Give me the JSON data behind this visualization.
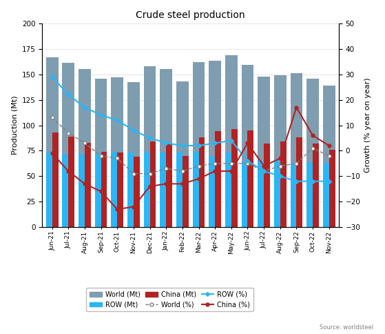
{
  "title": "Crude steel production",
  "ylabel_left": "Production (Mt)",
  "ylabel_right": "Growth (% year on year)",
  "source": "Source: worldsteel",
  "categories": [
    "Jun-21",
    "Jul-21",
    "Aug-21",
    "Sep-21",
    "Oct-21",
    "Nov-21",
    "Dec-21",
    "Jan-22",
    "Feb-22",
    "Mar-22",
    "Apr-22",
    "May-22",
    "Jun-22",
    "Jul-22",
    "Aug-22",
    "Sep-22",
    "Oct-22",
    "Nov-22"
  ],
  "world_mt": [
    167,
    161,
    155,
    146,
    147,
    142,
    158,
    155,
    143,
    162,
    163,
    169,
    159,
    148,
    149,
    151,
    146,
    139
  ],
  "row_mt": [
    74,
    72,
    72,
    72,
    74,
    73,
    74,
    73,
    73,
    74,
    69,
    73,
    64,
    66,
    65,
    63,
    64,
    63
  ],
  "china_mt": [
    93,
    89,
    83,
    74,
    73,
    69,
    84,
    82,
    70,
    88,
    94,
    96,
    95,
    82,
    84,
    88,
    82,
    76
  ],
  "world_pct": [
    13,
    7,
    3,
    -2,
    -3,
    -9,
    -9,
    -7,
    -8,
    -6,
    -5,
    -5,
    -5,
    -8,
    -6,
    -5,
    1,
    -2
  ],
  "row_pct": [
    29,
    22,
    17,
    14,
    12,
    8,
    5,
    3,
    2,
    2,
    3,
    4,
    -4,
    -8,
    -10,
    -12,
    -12,
    -12
  ],
  "china_pct": [
    -1,
    -8,
    -13,
    -16,
    -23,
    -22,
    -14,
    -13,
    -13,
    -11,
    -8,
    -8,
    3,
    -6,
    -3,
    17,
    6,
    2
  ],
  "bar_world_color": "#7f9db0",
  "bar_row_color": "#29b6f6",
  "bar_china_color": "#b22222",
  "world_line_color": "#808080",
  "row_line_color": "#29b6f6",
  "china_line_color": "#b22222",
  "ylim_left": [
    0,
    200
  ],
  "ylim_right": [
    -30,
    50
  ],
  "yticks_left": [
    0,
    25,
    50,
    75,
    100,
    125,
    150,
    175,
    200
  ],
  "yticks_right": [
    -30,
    -20,
    -10,
    0,
    10,
    20,
    30,
    40,
    50
  ]
}
